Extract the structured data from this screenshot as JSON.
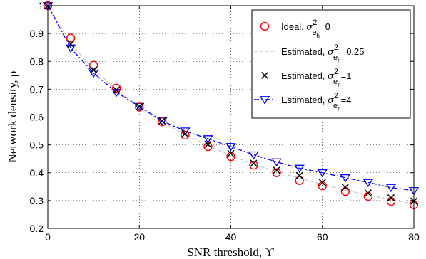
{
  "chart_data": {
    "type": "line",
    "xlabel": "SNR threshold, ϒ",
    "ylabel": "Network density, ρ",
    "xlim": [
      0,
      80
    ],
    "ylim": [
      0.2,
      1.0
    ],
    "xticks": [
      0,
      20,
      40,
      60,
      80
    ],
    "yticks": [
      0.2,
      0.3,
      0.4,
      0.5,
      0.6,
      0.7,
      0.8,
      0.9,
      1.0
    ],
    "ytick_labels": [
      "0.2",
      "0.3",
      "0.4",
      "0.5",
      "0.6",
      "0.7",
      "0.8",
      "0.9",
      "1"
    ],
    "grid": true,
    "legend_position": "top-right",
    "series": [
      {
        "name": "Ideal, σ²_{e_h}=0",
        "legend": {
          "prefix": "Ideal,",
          "sub": "e",
          "subsub": "h",
          "suffix": "=0"
        },
        "marker": "circle",
        "line": "none",
        "color": "#ff0000",
        "x": [
          0,
          5,
          10,
          15,
          20,
          25,
          30,
          35,
          40,
          45,
          50,
          55,
          60,
          65,
          70,
          75,
          80
        ],
        "y": [
          1.0,
          0.884,
          0.786,
          0.704,
          0.636,
          0.583,
          0.535,
          0.494,
          0.458,
          0.427,
          0.4,
          0.372,
          0.353,
          0.333,
          0.315,
          0.297,
          0.285
        ]
      },
      {
        "name": "Estimated, σ²_{e_h}=0.25",
        "legend": {
          "prefix": "Estimated,",
          "sub": "e",
          "subsub": "h",
          "suffix": "=0.25"
        },
        "marker": "none",
        "line": "dashed",
        "color": "#c8c8c8",
        "x": [
          0,
          5,
          10,
          15,
          20,
          25,
          30,
          35,
          40,
          45,
          50,
          55,
          60,
          65,
          70,
          75,
          80
        ],
        "y": [
          1.0,
          0.865,
          0.772,
          0.698,
          0.636,
          0.582,
          0.537,
          0.497,
          0.462,
          0.431,
          0.404,
          0.38,
          0.358,
          0.338,
          0.32,
          0.303,
          0.289
        ]
      },
      {
        "name": "Estimated, σ²_{e_h}=1",
        "legend": {
          "prefix": "Estimated,",
          "sub": "e",
          "subsub": "h",
          "suffix": "=1"
        },
        "marker": "x",
        "line": "none",
        "color": "#000000",
        "x": [
          0,
          5,
          10,
          15,
          20,
          25,
          30,
          35,
          40,
          45,
          50,
          55,
          60,
          65,
          70,
          75,
          80
        ],
        "y": [
          1.0,
          0.862,
          0.769,
          0.697,
          0.637,
          0.586,
          0.54,
          0.502,
          0.469,
          0.434,
          0.409,
          0.39,
          0.365,
          0.348,
          0.327,
          0.31,
          0.298
        ]
      },
      {
        "name": "Estimated, σ²_{e_h}=4",
        "legend": {
          "prefix": "Estimated,",
          "sub": "e",
          "subsub": "h",
          "suffix": "=4"
        },
        "marker": "triangle-down",
        "line": "dashdot",
        "color": "#0000ff",
        "x": [
          0,
          5,
          10,
          15,
          20,
          25,
          30,
          35,
          40,
          45,
          50,
          55,
          60,
          65,
          70,
          75,
          80
        ],
        "y": [
          1.0,
          0.848,
          0.758,
          0.689,
          0.638,
          0.586,
          0.55,
          0.522,
          0.494,
          0.464,
          0.439,
          0.416,
          0.4,
          0.382,
          0.365,
          0.347,
          0.336
        ]
      }
    ]
  }
}
